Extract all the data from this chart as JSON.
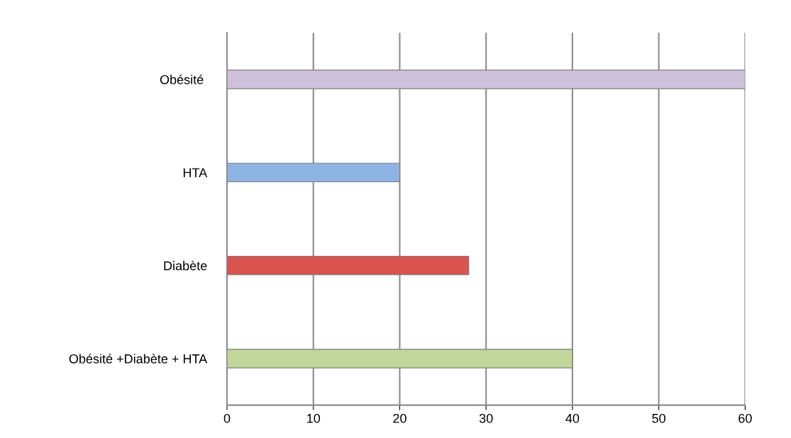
{
  "chart_data": {
    "type": "bar",
    "orientation": "horizontal",
    "categories": [
      "Obésité ",
      "HTA",
      "Diabète",
      "Obésité +Diabète + HTA"
    ],
    "values": [
      60,
      20,
      28,
      40
    ],
    "colors": [
      "#ccc0da",
      "#8db3e2",
      "#d9534f",
      "#c3d69b"
    ],
    "xlim": [
      0,
      60
    ],
    "xticks": [
      0,
      10,
      20,
      30,
      40,
      50,
      60
    ],
    "grid": "x",
    "legend": false
  }
}
